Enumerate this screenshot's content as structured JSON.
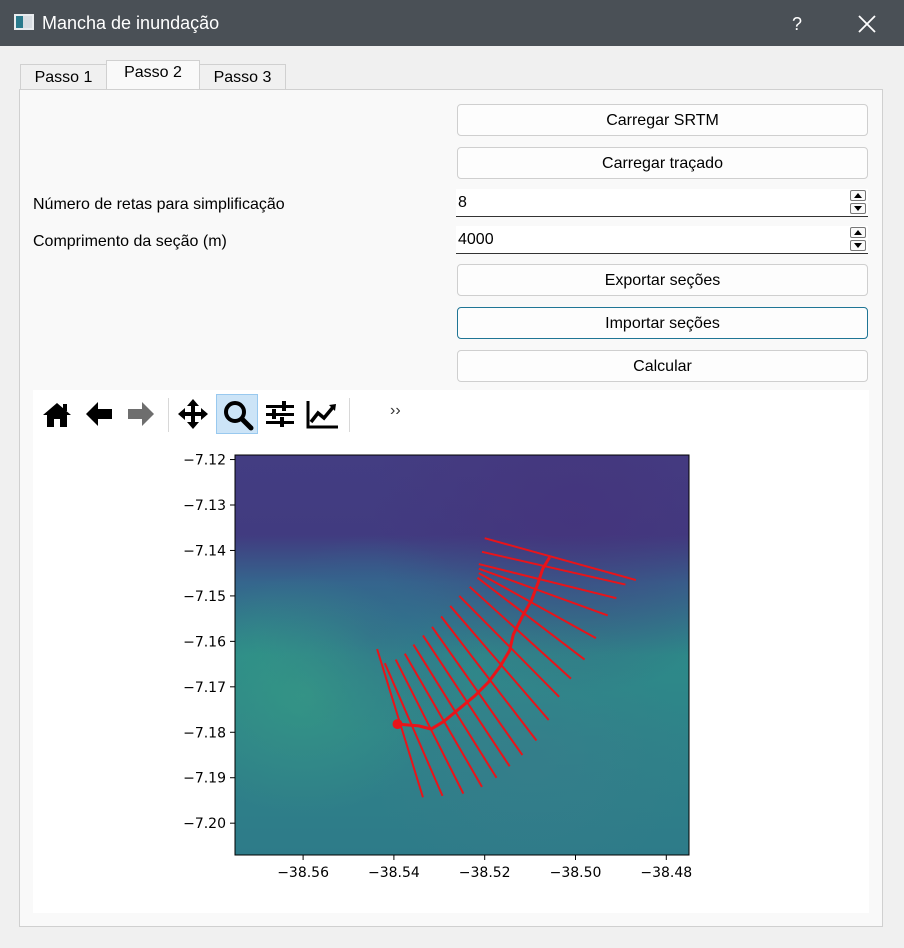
{
  "window": {
    "title": "Mancha de inundação",
    "help_label": "?"
  },
  "tabs": [
    {
      "label": "Passo 1"
    },
    {
      "label": "Passo 2"
    },
    {
      "label": "Passo 3"
    }
  ],
  "active_tab": "Passo 2",
  "buttons": {
    "load_srtm": "Carregar SRTM",
    "load_trace": "Carregar traçado",
    "export_sections": "Exportar seções",
    "import_sections": "Importar seções",
    "calculate": "Calcular"
  },
  "fields": {
    "num_lines_label": "Número de retas para simplificação",
    "num_lines_value": "8",
    "section_length_label": "Comprimento da seção (m)",
    "section_length_value": "4000"
  },
  "toolbar": {
    "tools": [
      "home-icon",
      "back-icon",
      "forward-icon",
      "pan-icon",
      "zoom-icon",
      "configure-subplots-icon",
      "edit-axis-icon"
    ],
    "active_tool": "zoom-icon",
    "overflow_label": "››"
  },
  "chart_data": {
    "type": "map",
    "x_ticks": [
      "−38.56",
      "−38.54",
      "−38.52",
      "−38.50",
      "−38.48"
    ],
    "y_ticks": [
      "−7.12",
      "−7.13",
      "−7.14",
      "−7.15",
      "−7.16",
      "−7.17",
      "−7.18",
      "−7.19",
      "−7.20"
    ],
    "xlim": [
      -38.575,
      -38.475
    ],
    "ylim": [
      -7.207,
      -7.119
    ],
    "colors": {
      "line": "#e8141a",
      "background_low": "#463b85",
      "background_high": "#2c8c88"
    },
    "trace": [
      [
        -38.5392,
        -7.1782
      ],
      [
        -38.5345,
        -7.1786
      ],
      [
        -38.5318,
        -7.1793
      ],
      [
        -38.529,
        -7.1776
      ],
      [
        -38.5257,
        -7.1749
      ],
      [
        -38.5222,
        -7.172
      ],
      [
        -38.5192,
        -7.169
      ],
      [
        -38.5166,
        -7.1655
      ],
      [
        -38.5145,
        -7.162
      ],
      [
        -38.5137,
        -7.1585
      ],
      [
        -38.5117,
        -7.1545
      ],
      [
        -38.5097,
        -7.151
      ],
      [
        -38.5082,
        -7.147
      ],
      [
        -38.5072,
        -7.144
      ],
      [
        -38.5057,
        -7.1415
      ]
    ],
    "sections": [
      [
        [
          -38.5437,
          -7.1617
        ],
        [
          -38.5336,
          -7.1943
        ]
      ],
      [
        [
          -38.542,
          -7.1648
        ],
        [
          -38.5293,
          -7.194
        ]
      ],
      [
        [
          -38.5396,
          -7.164
        ],
        [
          -38.5247,
          -7.1935
        ]
      ],
      [
        [
          -38.5376,
          -7.1627
        ],
        [
          -38.5206,
          -7.192
        ]
      ],
      [
        [
          -38.5357,
          -7.1607
        ],
        [
          -38.5174,
          -7.19
        ]
      ],
      [
        [
          -38.5336,
          -7.1587
        ],
        [
          -38.5145,
          -7.1875
        ]
      ],
      [
        [
          -38.5316,
          -7.1568
        ],
        [
          -38.5117,
          -7.185
        ]
      ],
      [
        [
          -38.5296,
          -7.1545
        ],
        [
          -38.5086,
          -7.1818
        ]
      ],
      [
        [
          -38.5276,
          -7.1522
        ],
        [
          -38.5059,
          -7.1773
        ]
      ],
      [
        [
          -38.5256,
          -7.15
        ],
        [
          -38.5036,
          -7.1722
        ]
      ],
      [
        [
          -38.5233,
          -7.148
        ],
        [
          -38.501,
          -7.1682
        ]
      ],
      [
        [
          -38.5216,
          -7.146
        ],
        [
          -38.498,
          -7.164
        ]
      ],
      [
        [
          -38.5213,
          -7.145
        ],
        [
          -38.4955,
          -7.1593
        ]
      ],
      [
        [
          -38.5213,
          -7.144
        ],
        [
          -38.4929,
          -7.1543
        ]
      ],
      [
        [
          -38.5213,
          -7.143
        ],
        [
          -38.491,
          -7.1505
        ]
      ],
      [
        [
          -38.5206,
          -7.1403
        ],
        [
          -38.489,
          -7.1475
        ]
      ],
      [
        [
          -38.52,
          -7.1373
        ],
        [
          -38.4867,
          -7.1465
        ]
      ]
    ],
    "start_point": [
      -38.5392,
      -7.1782
    ]
  }
}
